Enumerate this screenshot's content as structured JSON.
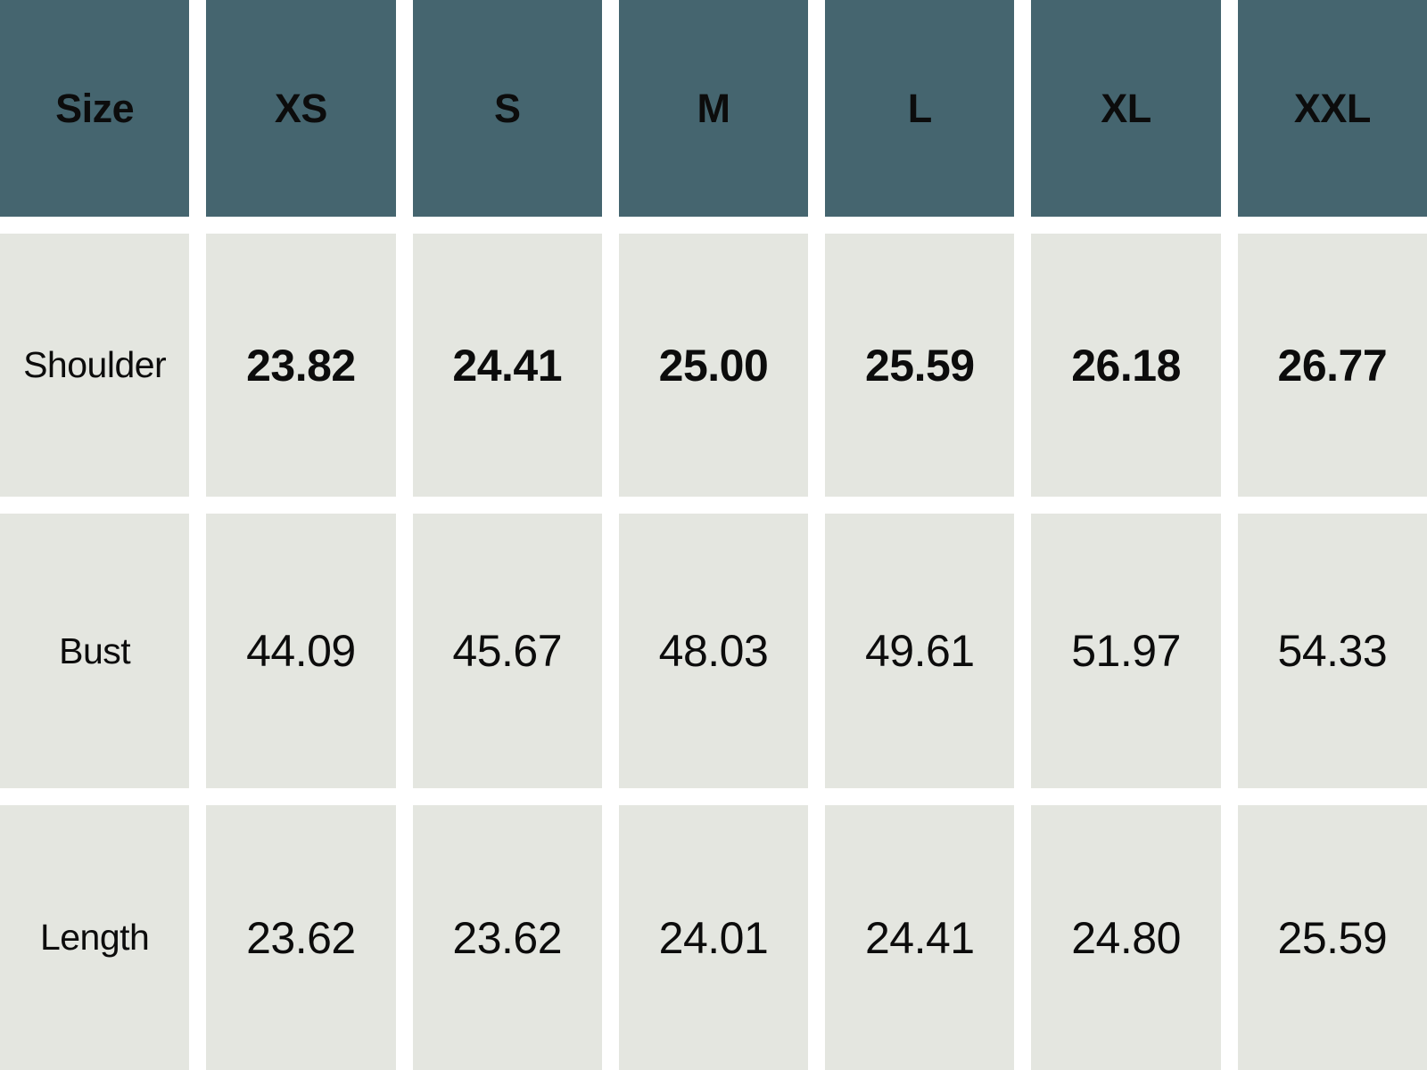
{
  "chart_data": {
    "type": "table",
    "corner_label": "Size",
    "columns": [
      "XS",
      "S",
      "M",
      "L",
      "XL",
      "XXL"
    ],
    "rows": [
      {
        "label": "Shoulder",
        "values": [
          "23.82",
          "24.41",
          "25.00",
          "25.59",
          "26.18",
          "26.77"
        ],
        "emphasis": "bold"
      },
      {
        "label": "Bust",
        "values": [
          "44.09",
          "45.67",
          "48.03",
          "49.61",
          "51.97",
          "54.33"
        ],
        "emphasis": "regular"
      },
      {
        "label": "Length",
        "values": [
          "23.62",
          "23.62",
          "24.01",
          "24.41",
          "24.80",
          "25.59"
        ],
        "emphasis": "regular"
      }
    ],
    "layout_hints": {
      "header_position": "top",
      "row_labels_position": "left",
      "grid": "white gutters between cells"
    },
    "colors": {
      "header_bg": "#45656F",
      "cell_bg": "#E4E6E0",
      "gutter": "#FFFFFF",
      "text": "#0C0C0C"
    }
  }
}
